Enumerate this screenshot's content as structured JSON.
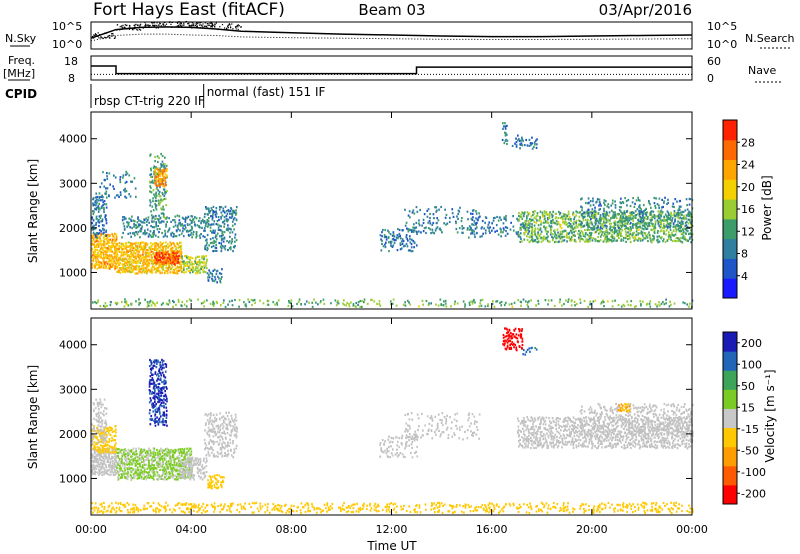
{
  "header": {
    "station": "Fort Hays East (fitACF)",
    "beam": "Beam 03",
    "date": "03/Apr/2016"
  },
  "colors": {
    "power_scale": [
      "#1a1aff",
      "#1e55c8",
      "#2f7fa0",
      "#3c9c6a",
      "#9acd32",
      "#f5d000",
      "#ffa500",
      "#ff6a00",
      "#ff2200"
    ],
    "velocity_scale": [
      "#ff0000",
      "#ff5a00",
      "#ff9c00",
      "#ffc800",
      "#c8c8c8",
      "#7acc22",
      "#3ca55a",
      "#2166b8",
      "#1a1ab4"
    ],
    "ground_scatter": "#c0c0c0"
  },
  "chart_data": [
    {
      "type": "line",
      "panel": "sky_noise",
      "left_label": "N.Sky",
      "right_label": "N.Search",
      "left_ticks": [
        "10^5",
        "10^0"
      ],
      "right_ticks": [
        "10^5",
        "10^0"
      ],
      "x_hours": [
        0,
        1,
        2,
        3,
        4,
        5,
        6,
        8,
        10,
        12,
        14,
        16,
        18,
        20,
        22,
        24
      ],
      "sky_level": [
        0.4,
        0.72,
        0.8,
        0.82,
        0.8,
        0.74,
        0.66,
        0.6,
        0.55,
        0.52,
        0.48,
        0.46,
        0.46,
        0.48,
        0.5,
        0.52
      ],
      "search_level": [
        0.3,
        0.5,
        0.55,
        0.55,
        0.52,
        0.5,
        0.45,
        0.42,
        0.4,
        0.38,
        0.36,
        0.35,
        0.35,
        0.36,
        0.37,
        0.38
      ]
    },
    {
      "type": "line",
      "panel": "frequency",
      "left_label": "Freq.",
      "left_unit": "[MHz]",
      "right_label": "Nave",
      "left_ticks": [
        18,
        8
      ],
      "right_ticks": [
        60,
        0
      ],
      "freq_segments": [
        {
          "start_hour": 0.0,
          "end_hour": 1.0,
          "value_mhz": 14.0
        },
        {
          "start_hour": 1.0,
          "end_hour": 13.0,
          "value_mhz": 10.5
        },
        {
          "start_hour": 13.0,
          "end_hour": 24.0,
          "value_mhz": 13.5
        }
      ],
      "nave_level": 14
    },
    {
      "type": "table",
      "panel": "cpid",
      "label": "CPID",
      "modes": [
        {
          "start_hour": 0.0,
          "text": "rbsp CT-trig 220 IF"
        },
        {
          "start_hour": 4.5,
          "text": "normal (fast) 151 IF"
        }
      ]
    },
    {
      "type": "heatmap",
      "panel": "power",
      "ylabel": "Slant Range [km]",
      "yticks": [
        1000,
        2000,
        3000,
        4000
      ],
      "ylim": [
        180,
        4600
      ],
      "xlim": [
        0,
        24
      ],
      "colorbar_label": "Power [dB]",
      "colorbar_ticks": [
        4,
        8,
        12,
        16,
        20,
        24,
        28
      ],
      "colorbar_range": [
        0,
        32
      ],
      "regions": [
        {
          "t0": 0.0,
          "t1": 1.0,
          "r0": 1100,
          "r1": 1900,
          "value": 22,
          "density": 0.95
        },
        {
          "t0": 1.0,
          "t1": 3.6,
          "r0": 1000,
          "r1": 1700,
          "value": 21,
          "density": 0.9
        },
        {
          "t0": 2.5,
          "t1": 3.5,
          "r0": 1200,
          "r1": 1500,
          "value": 28,
          "density": 0.9
        },
        {
          "t0": 3.6,
          "t1": 4.6,
          "r0": 1000,
          "r1": 1400,
          "value": 17,
          "density": 0.75
        },
        {
          "t0": 4.6,
          "t1": 5.2,
          "r0": 800,
          "r1": 1100,
          "value": 8,
          "density": 0.6
        },
        {
          "t0": 0.0,
          "t1": 0.6,
          "r0": 1800,
          "r1": 2800,
          "value": 8,
          "density": 0.55
        },
        {
          "t0": 1.2,
          "t1": 4.5,
          "r0": 1800,
          "r1": 2300,
          "value": 10,
          "density": 0.4
        },
        {
          "t0": 4.5,
          "t1": 5.8,
          "r0": 1500,
          "r1": 2500,
          "value": 10,
          "density": 0.45
        },
        {
          "t0": 2.3,
          "t1": 3.0,
          "r0": 2200,
          "r1": 3700,
          "value": 12,
          "density": 0.4
        },
        {
          "t0": 2.5,
          "t1": 3.0,
          "r0": 2950,
          "r1": 3350,
          "value": 24,
          "density": 0.95
        },
        {
          "t0": 0.3,
          "t1": 1.8,
          "r0": 2700,
          "r1": 3300,
          "value": 9,
          "density": 0.18
        },
        {
          "t0": 0.0,
          "t1": 24.0,
          "r0": 250,
          "r1": 420,
          "value": 14,
          "density": 0.28
        },
        {
          "t0": 11.5,
          "t1": 13.0,
          "r0": 1500,
          "r1": 2000,
          "value": 8,
          "density": 0.35
        },
        {
          "t0": 12.5,
          "t1": 15.5,
          "r0": 1900,
          "r1": 2500,
          "value": 9,
          "density": 0.2
        },
        {
          "t0": 15.0,
          "t1": 17.5,
          "r0": 1800,
          "r1": 2300,
          "value": 8,
          "density": 0.25
        },
        {
          "t0": 17.0,
          "t1": 24.0,
          "r0": 1700,
          "r1": 2400,
          "value": 14,
          "density": 0.6
        },
        {
          "t0": 19.5,
          "t1": 24.0,
          "r0": 2000,
          "r1": 2700,
          "value": 10,
          "density": 0.3
        },
        {
          "t0": 16.4,
          "t1": 16.6,
          "r0": 3900,
          "r1": 4400,
          "value": 10,
          "density": 0.5
        },
        {
          "t0": 16.8,
          "t1": 17.8,
          "r0": 3800,
          "r1": 4100,
          "value": 8,
          "density": 0.3
        }
      ]
    },
    {
      "type": "heatmap",
      "panel": "velocity",
      "ylabel": "Slant Range [km]",
      "yticks": [
        1000,
        2000,
        3000,
        4000
      ],
      "ylim": [
        180,
        4600
      ],
      "xlim": [
        0,
        24
      ],
      "xticks": [
        "00:00",
        "04:00",
        "08:00",
        "12:00",
        "16:00",
        "20:00",
        "00:00"
      ],
      "xlabel": "Time UT",
      "colorbar_label": "Velocity [m s⁻¹]",
      "colorbar_ticks": [
        "200",
        "100",
        "50",
        "15",
        "-15",
        "-50",
        "-100",
        "-200"
      ],
      "colorbar_range": [
        -250,
        250
      ],
      "regions": [
        {
          "t0": 0.0,
          "t1": 1.0,
          "r0": 1100,
          "r1": 1700,
          "value": 0,
          "density": 0.95
        },
        {
          "t0": 0.0,
          "t1": 1.0,
          "r0": 1600,
          "r1": 2200,
          "value": -55,
          "density": 0.6
        },
        {
          "t0": 1.0,
          "t1": 4.0,
          "r0": 1000,
          "r1": 1700,
          "value": 35,
          "density": 0.85
        },
        {
          "t0": 3.5,
          "t1": 4.6,
          "r0": 1000,
          "r1": 1500,
          "value": 0,
          "density": 0.7
        },
        {
          "t0": 4.6,
          "t1": 5.3,
          "r0": 800,
          "r1": 1100,
          "value": -60,
          "density": 0.6
        },
        {
          "t0": 0.0,
          "t1": 0.6,
          "r0": 1800,
          "r1": 2800,
          "value": 0,
          "density": 0.45
        },
        {
          "t0": 4.5,
          "t1": 5.8,
          "r0": 1500,
          "r1": 2500,
          "value": 0,
          "density": 0.45
        },
        {
          "t0": 2.3,
          "t1": 3.0,
          "r0": 2200,
          "r1": 3700,
          "value": 200,
          "density": 0.6
        },
        {
          "t0": 0.0,
          "t1": 24.0,
          "r0": 250,
          "r1": 480,
          "value": -55,
          "density": 0.3
        },
        {
          "t0": 11.5,
          "t1": 13.0,
          "r0": 1500,
          "r1": 2000,
          "value": 0,
          "density": 0.35
        },
        {
          "t0": 12.5,
          "t1": 15.5,
          "r0": 1900,
          "r1": 2500,
          "value": 0,
          "density": 0.2
        },
        {
          "t0": 17.0,
          "t1": 24.0,
          "r0": 1700,
          "r1": 2400,
          "value": 0,
          "density": 0.6
        },
        {
          "t0": 19.5,
          "t1": 24.0,
          "r0": 2000,
          "r1": 2700,
          "value": 0,
          "density": 0.3
        },
        {
          "t0": 21.0,
          "t1": 21.5,
          "r0": 2500,
          "r1": 2700,
          "value": -90,
          "density": 0.8
        },
        {
          "t0": 16.4,
          "t1": 17.2,
          "r0": 3900,
          "r1": 4400,
          "value": -220,
          "density": 0.6
        },
        {
          "t0": 17.2,
          "t1": 17.8,
          "r0": 3800,
          "r1": 4000,
          "value": 150,
          "density": 0.3
        }
      ]
    }
  ]
}
